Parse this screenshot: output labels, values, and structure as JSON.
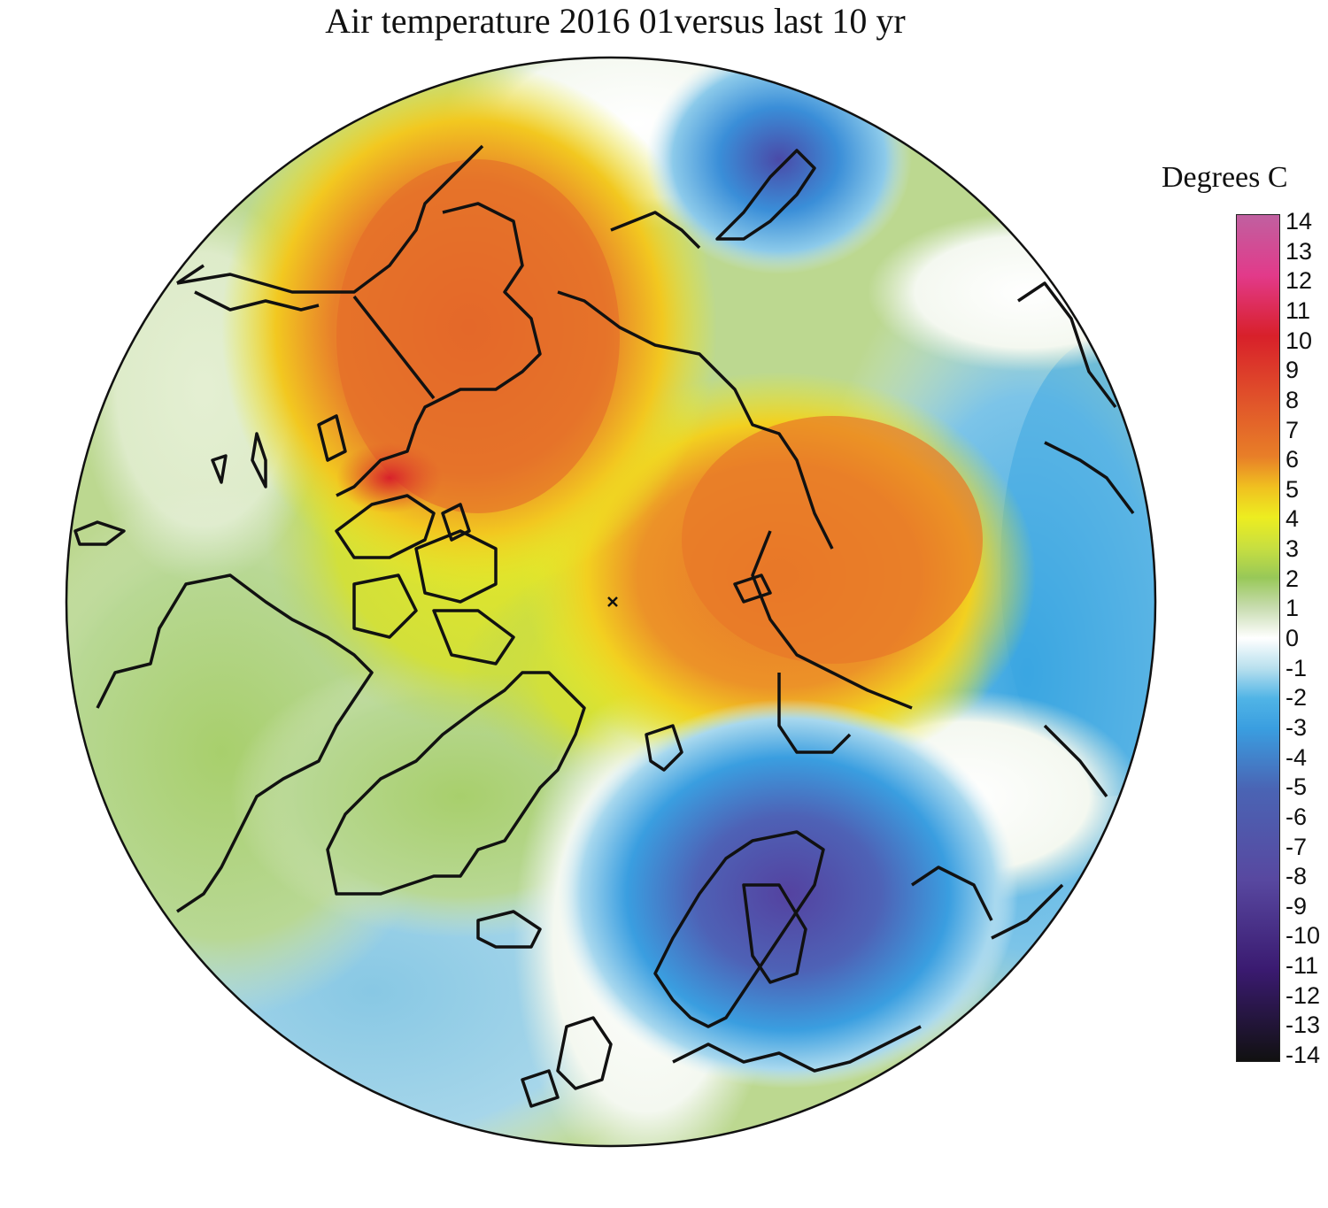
{
  "title": "Air temperature 2016 01versus last 10 yr",
  "legend": {
    "title": "Degrees C",
    "ticks": [
      "14",
      "13",
      "12",
      "11",
      "10",
      "9",
      "8",
      "7",
      "6",
      "5",
      "4",
      "3",
      "2",
      "1",
      "0",
      "-1",
      "-2",
      "-3",
      "-4",
      "-5",
      "-6",
      "-7",
      "-8",
      "-9",
      "-10",
      "-11",
      "-12",
      "-13",
      "-14"
    ],
    "range": [
      -14,
      14
    ],
    "stops": [
      {
        "value": 14,
        "color": "#c060a0"
      },
      {
        "value": 12,
        "color": "#e23a8a"
      },
      {
        "value": 10,
        "color": "#d8202a"
      },
      {
        "value": 8,
        "color": "#e0502a"
      },
      {
        "value": 6,
        "color": "#e87f28"
      },
      {
        "value": 5,
        "color": "#f0c020"
      },
      {
        "value": 4,
        "color": "#eded20"
      },
      {
        "value": 3,
        "color": "#c8df40"
      },
      {
        "value": 2,
        "color": "#98c858"
      },
      {
        "value": 1,
        "color": "#c8dcb0"
      },
      {
        "value": 0,
        "color": "#ffffff"
      },
      {
        "value": -1,
        "color": "#b8e0ee"
      },
      {
        "value": -2,
        "color": "#50b4e6"
      },
      {
        "value": -3,
        "color": "#3a9ee0"
      },
      {
        "value": -5,
        "color": "#4a64b4"
      },
      {
        "value": -8,
        "color": "#5848a0"
      },
      {
        "value": -11,
        "color": "#3a1a70"
      },
      {
        "value": -14,
        "color": "#111111"
      }
    ]
  },
  "map": {
    "projection": "north-polar-stereographic",
    "pole_marker": "x-marker"
  }
}
